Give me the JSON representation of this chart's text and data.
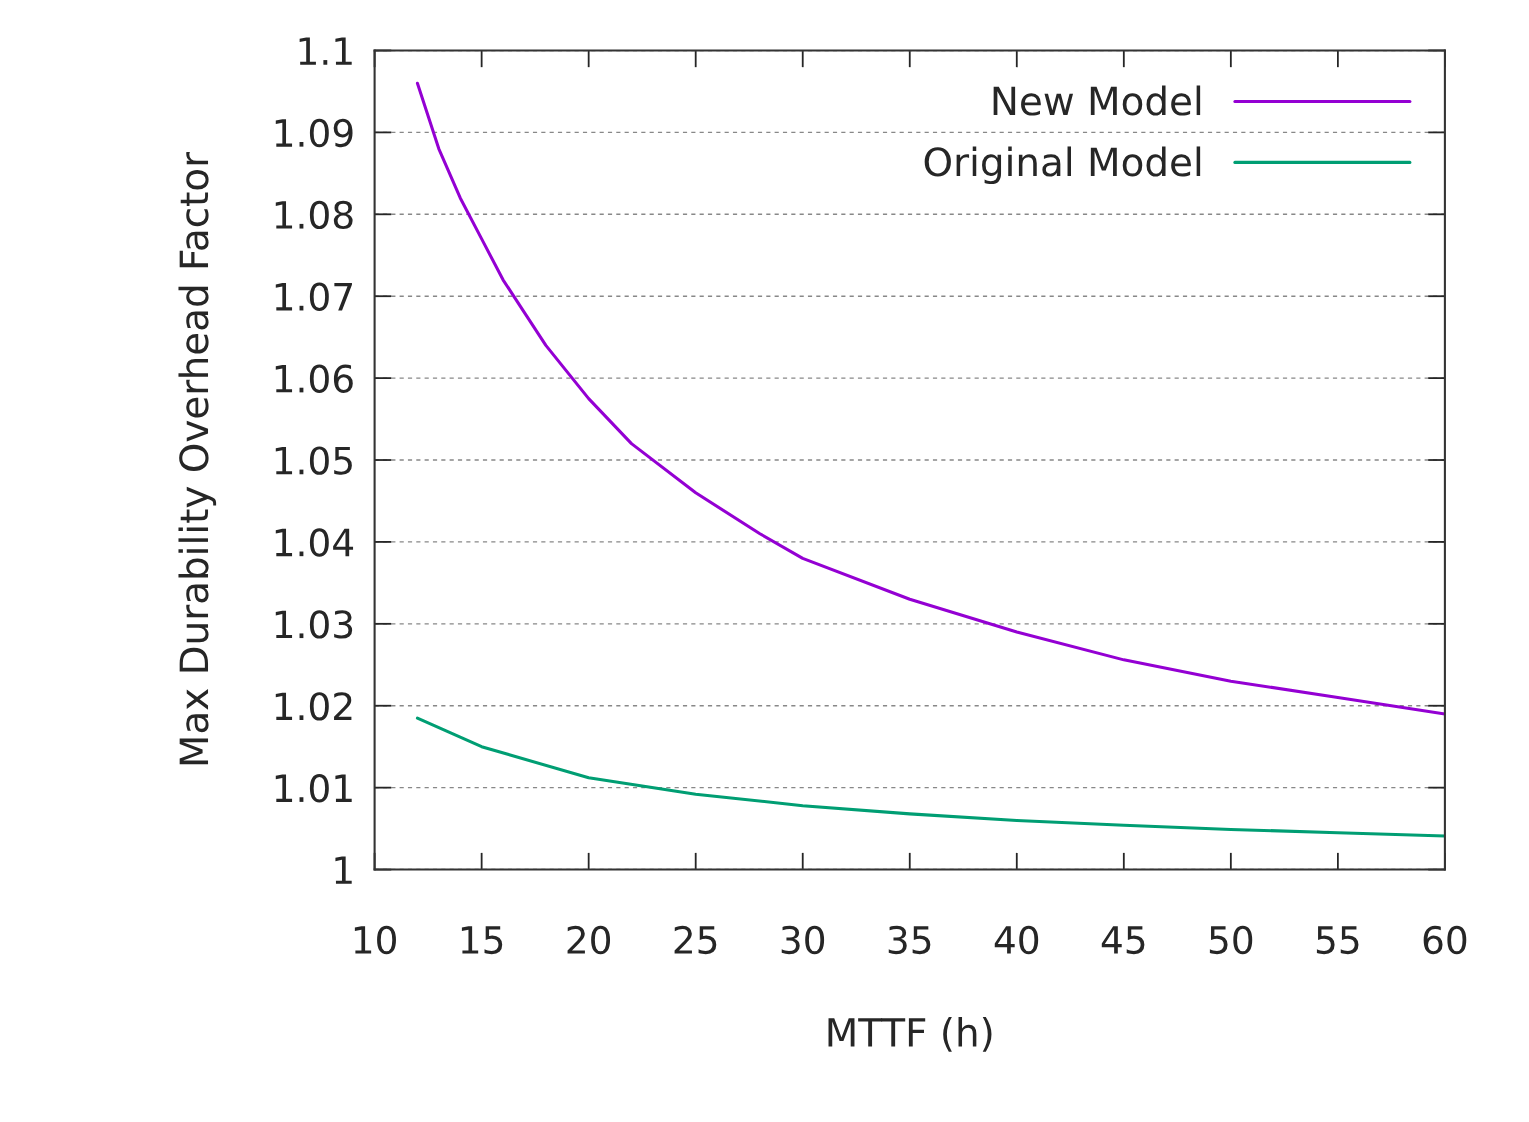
{
  "chart_data": {
    "type": "line",
    "xlabel": "MTTF (h)",
    "ylabel": "Max Durability Overhead Factor",
    "xlim": [
      10,
      60
    ],
    "xticks": [
      10,
      15,
      20,
      25,
      30,
      35,
      40,
      45,
      50,
      55,
      60
    ],
    "ylim": [
      1,
      1.1
    ],
    "yticks": [
      1,
      1.01,
      1.02,
      1.03,
      1.04,
      1.05,
      1.06,
      1.07,
      1.08,
      1.09,
      1.1
    ],
    "grid": "y",
    "legend": "top right",
    "line_style": "solid",
    "marker": "none",
    "series": [
      {
        "name": "New Model",
        "color": "#9400d3",
        "x": [
          12,
          13,
          14,
          15,
          16,
          17,
          18,
          20,
          22,
          25,
          28,
          30,
          35,
          40,
          45,
          50,
          55,
          60
        ],
        "values": [
          1.096,
          1.088,
          1.082,
          1.077,
          1.072,
          1.068,
          1.064,
          1.0575,
          1.052,
          1.046,
          1.041,
          1.038,
          1.033,
          1.029,
          1.0256,
          1.023,
          1.021,
          1.019
        ]
      },
      {
        "name": "Original Model",
        "color": "#009e73",
        "x": [
          12,
          15,
          20,
          25,
          30,
          35,
          40,
          45,
          50,
          55,
          60
        ],
        "values": [
          1.0185,
          1.015,
          1.0112,
          1.0092,
          1.0078,
          1.0068,
          1.006,
          1.0054,
          1.0049,
          1.0045,
          1.0041
        ]
      }
    ]
  }
}
